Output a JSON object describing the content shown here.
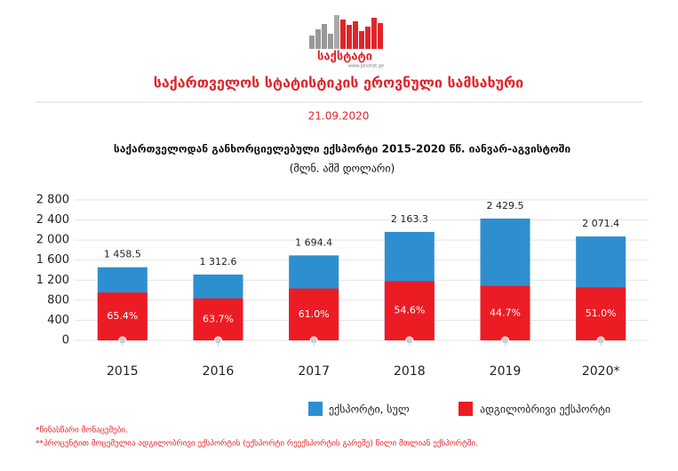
{
  "header": {
    "logo": "საქსტატი",
    "site": "www.geostat.ge",
    "title": "საქართველოს სტატისტიკის ეროვნული სამსახური",
    "date": "21.09.2020"
  },
  "chart_data": {
    "type": "bar",
    "stacked": true,
    "title": "საქართველოდან განხორციელებული ექსპორტი 2015-2020 წწ. იანვარ-აგვისტოში",
    "subtitle": "(მლნ. აშშ დოლარი)",
    "categories": [
      "2015",
      "2016",
      "2017",
      "2018",
      "2019",
      "2020*"
    ],
    "series": [
      {
        "name": "ექსპორტი, სულ",
        "color": "#2e8fd0",
        "values": [
          1458.5,
          1312.6,
          1694.4,
          2163.3,
          2429.5,
          2071.4
        ],
        "value_labels": [
          "1 458.5",
          "1 312.6",
          "1 694.4",
          "2 163.3",
          "2 429.5",
          "2 071.4"
        ]
      },
      {
        "name": "ადგილობრივი ექსპორტი",
        "color": "#ec1c24",
        "values": [
          65.4,
          63.7,
          61.0,
          54.6,
          44.7,
          51.0
        ],
        "value_labels": [
          "65.4%",
          "63.7%",
          "61.0%",
          "54.6%",
          "44.7%",
          "51.0%"
        ]
      }
    ],
    "ylim": [
      0,
      2800
    ],
    "yticks": [
      0,
      {
        "value": 400,
        "label": "400"
      },
      {
        "value": 800,
        "label": "800"
      },
      {
        "value": 1200,
        "label": "1 200"
      },
      {
        "value": 1600,
        "label": "1 600"
      },
      {
        "value": 2000,
        "label": "2 000"
      },
      {
        "value": 2400,
        "label": "2 400"
      },
      {
        "value": 2800,
        "label": "2 800"
      }
    ],
    "grid": true
  },
  "footnotes": [
    "*წინასწარი მონაცემები.",
    "**პროცენტით მოცემულია ადგილობრივი ექსპორტის (ექსპორტი რეექსპორტის გარეშე) წილი მთლიან ექსპორტში."
  ]
}
